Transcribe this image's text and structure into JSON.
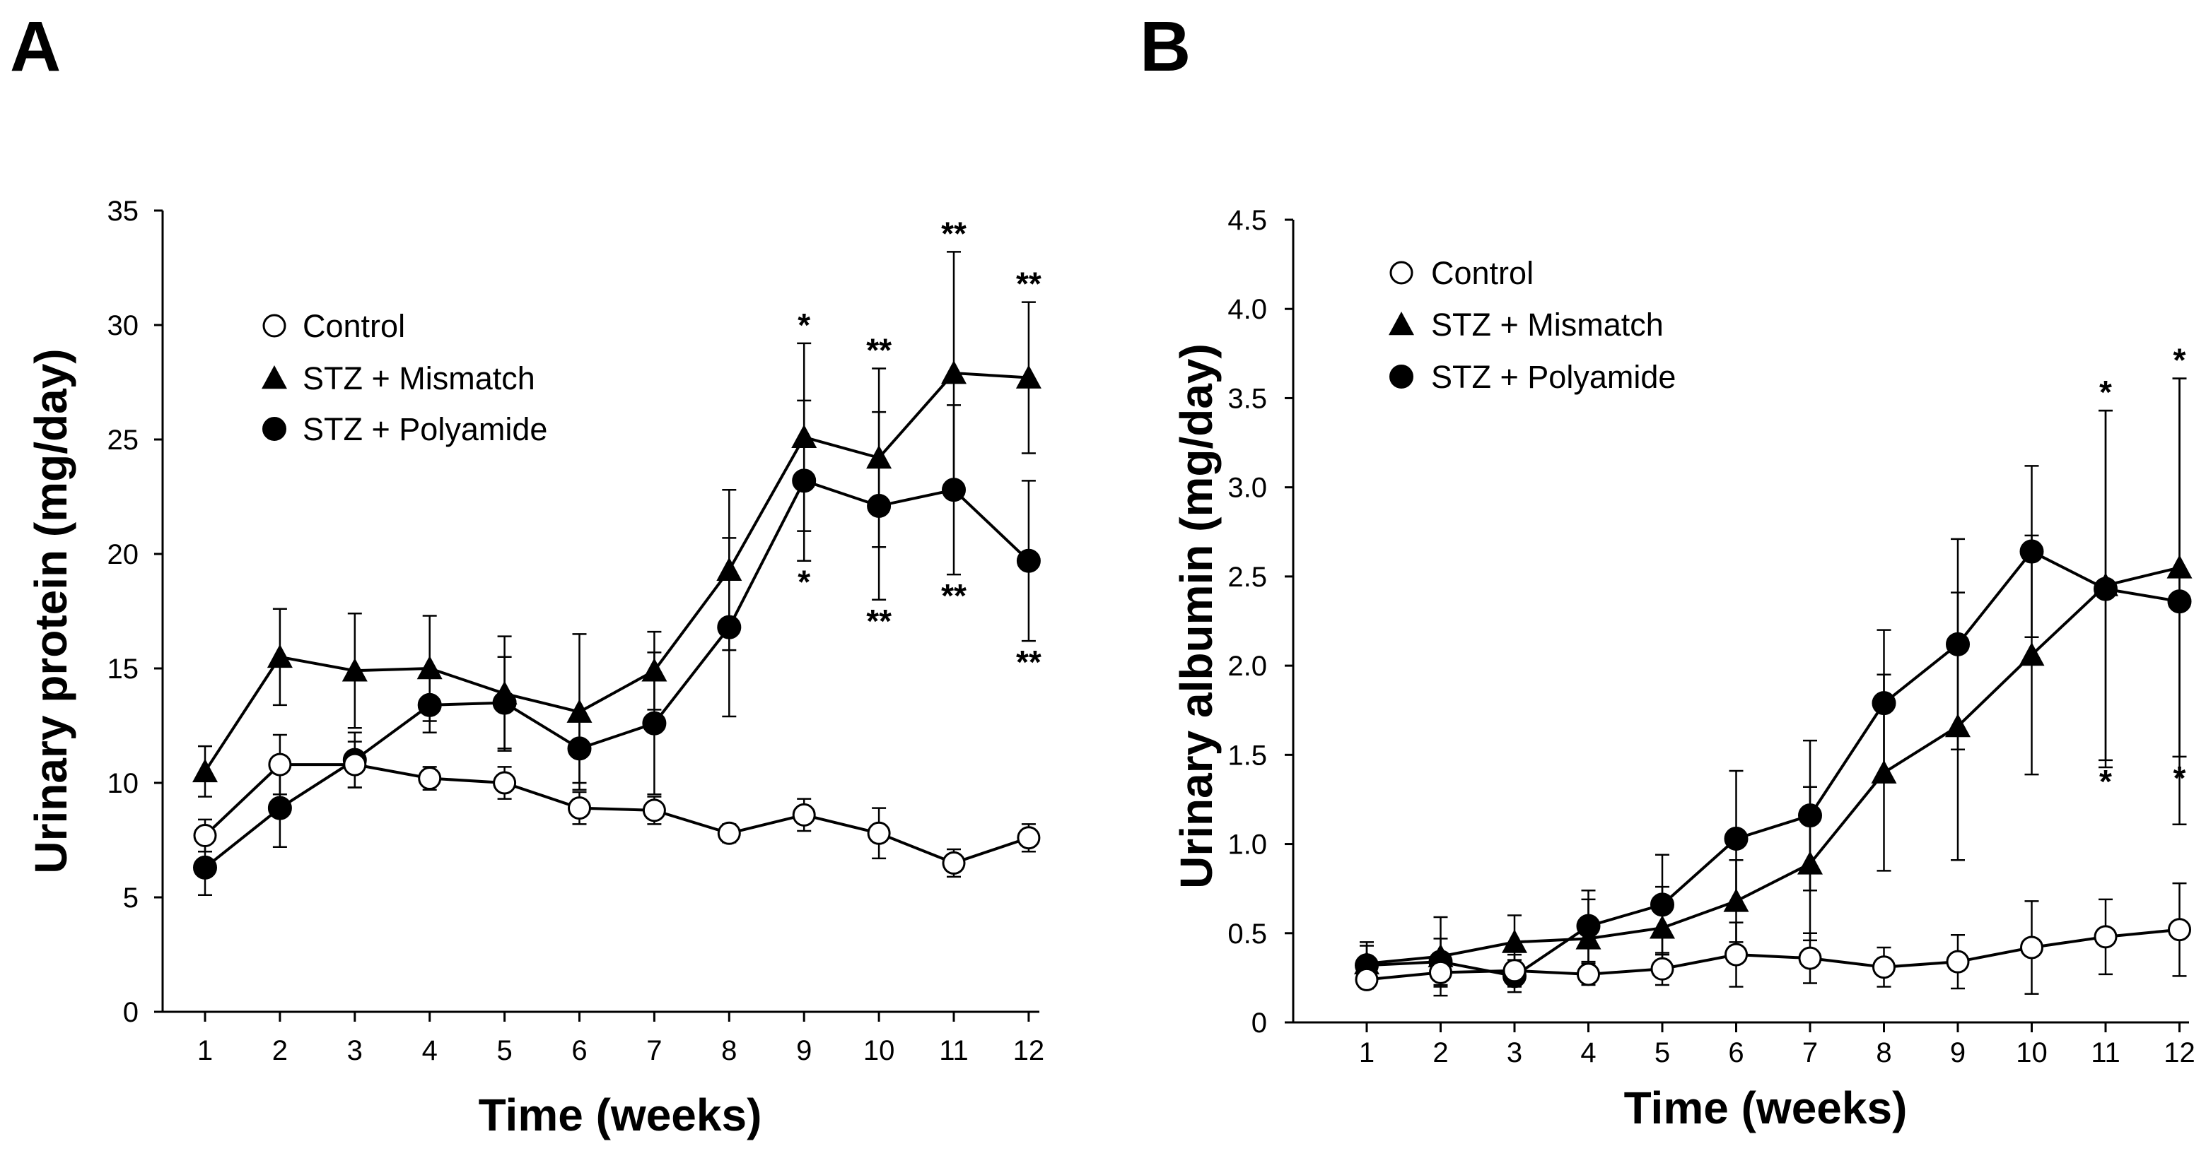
{
  "chart_data": [
    {
      "type": "line",
      "panel_label": "A",
      "xlabel": "Time (weeks)",
      "ylabel": "Urinary protein (mg/day)",
      "x": [
        1,
        2,
        3,
        4,
        5,
        6,
        7,
        8,
        9,
        10,
        11,
        12
      ],
      "x_tick_labels": [
        "1",
        "2",
        "3",
        "4",
        "5",
        "6",
        "7",
        "8",
        "9",
        "10",
        "11",
        "12"
      ],
      "ylim": [
        0,
        35
      ],
      "y_ticks": [
        0,
        5,
        10,
        15,
        20,
        25,
        30,
        35
      ],
      "y_tick_labels": [
        "0",
        "5",
        "10",
        "15",
        "20",
        "25",
        "30",
        "35"
      ],
      "legend_position": "upper-left",
      "series": [
        {
          "name": "Control",
          "marker": "open-circle",
          "values": [
            7.7,
            10.8,
            10.8,
            10.2,
            10.0,
            8.9,
            8.8,
            7.8,
            8.6,
            7.8,
            6.5,
            7.6
          ],
          "errors": [
            0.7,
            1.3,
            1.0,
            0.5,
            0.7,
            0.7,
            0.6,
            0.4,
            0.7,
            1.1,
            0.6,
            0.6
          ]
        },
        {
          "name": "STZ + Mismatch",
          "marker": "filled-triangle",
          "values": [
            10.5,
            15.5,
            14.9,
            15.0,
            13.9,
            13.1,
            14.9,
            19.3,
            25.1,
            24.2,
            27.9,
            27.7
          ],
          "errors": [
            1.1,
            2.1,
            2.5,
            2.3,
            2.5,
            3.4,
            1.7,
            3.5,
            4.1,
            3.9,
            5.3,
            3.3
          ]
        },
        {
          "name": "STZ + Polyamide",
          "marker": "filled-circle",
          "values": [
            6.3,
            8.9,
            11.0,
            13.4,
            13.5,
            11.5,
            12.6,
            16.8,
            23.2,
            22.1,
            22.8,
            19.7
          ],
          "errors": [
            1.2,
            1.7,
            1.2,
            1.2,
            2.0,
            1.5,
            3.1,
            3.9,
            3.5,
            4.1,
            3.7,
            3.5
          ]
        }
      ],
      "annotations": [
        {
          "series": "STZ + Mismatch",
          "x": 9,
          "text": "*",
          "position": "above"
        },
        {
          "series": "STZ + Mismatch",
          "x": 10,
          "text": "**",
          "position": "above"
        },
        {
          "series": "STZ + Mismatch",
          "x": 11,
          "text": "**",
          "position": "above"
        },
        {
          "series": "STZ + Mismatch",
          "x": 12,
          "text": "**",
          "position": "above"
        },
        {
          "series": "STZ + Polyamide",
          "x": 9,
          "text": "*",
          "position": "below"
        },
        {
          "series": "STZ + Polyamide",
          "x": 10,
          "text": "**",
          "position": "below"
        },
        {
          "series": "STZ + Polyamide",
          "x": 11,
          "text": "**",
          "position": "below"
        },
        {
          "series": "STZ + Polyamide",
          "x": 12,
          "text": "**",
          "position": "below"
        }
      ]
    },
    {
      "type": "line",
      "panel_label": "B",
      "xlabel": "Time (weeks)",
      "ylabel": "Urinary albumin (mg/day)",
      "x": [
        1,
        2,
        3,
        4,
        5,
        6,
        7,
        8,
        9,
        10,
        11,
        12
      ],
      "x_tick_labels": [
        "1",
        "2",
        "3",
        "4",
        "5",
        "6",
        "7",
        "8",
        "9",
        "10",
        "11",
        "12"
      ],
      "ylim": [
        0,
        4.5
      ],
      "y_ticks": [
        0,
        0.5,
        1.0,
        1.5,
        2.0,
        2.5,
        3.0,
        3.5,
        4.0,
        4.5
      ],
      "y_tick_labels": [
        "0",
        "0.5",
        "1.0",
        "1.5",
        "2.0",
        "2.5",
        "3.0",
        "3.5",
        "4.0",
        "4.5"
      ],
      "legend_position": "upper-left",
      "series": [
        {
          "name": "Control",
          "marker": "open-circle",
          "values": [
            0.24,
            0.28,
            0.29,
            0.27,
            0.3,
            0.38,
            0.36,
            0.31,
            0.34,
            0.42,
            0.48,
            0.52
          ],
          "errors": [
            0.05,
            0.08,
            0.09,
            0.06,
            0.09,
            0.18,
            0.14,
            0.11,
            0.15,
            0.26,
            0.21,
            0.26
          ]
        },
        {
          "name": "STZ + Mismatch",
          "marker": "filled-triangle",
          "values": [
            0.33,
            0.37,
            0.45,
            0.47,
            0.53,
            0.68,
            0.89,
            1.4,
            1.66,
            2.06,
            2.45,
            2.55
          ],
          "errors": [
            0.1,
            0.22,
            0.15,
            0.22,
            0.23,
            0.23,
            0.43,
            0.55,
            0.75,
            0.67,
            0.98,
            1.06
          ]
        },
        {
          "name": "STZ + Polyamide",
          "marker": "filled-circle",
          "values": [
            0.32,
            0.34,
            0.26,
            0.54,
            0.66,
            1.03,
            1.16,
            1.79,
            2.12,
            2.64,
            2.43,
            2.36
          ],
          "errors": [
            0.13,
            0.13,
            0.09,
            0.2,
            0.28,
            0.38,
            0.42,
            0.41,
            0.59,
            0.48,
            1.0,
            1.25
          ]
        }
      ],
      "annotations": [
        {
          "series": "STZ + Polyamide",
          "x": 11,
          "text": "*",
          "position": "above"
        },
        {
          "series": "STZ + Polyamide",
          "x": 12,
          "text": "*",
          "position": "above"
        },
        {
          "series": "STZ + Mismatch",
          "x": 11,
          "text": "*",
          "position": "below"
        },
        {
          "series": "STZ + Mismatch",
          "x": 12,
          "text": "*",
          "position": "below"
        }
      ]
    }
  ]
}
